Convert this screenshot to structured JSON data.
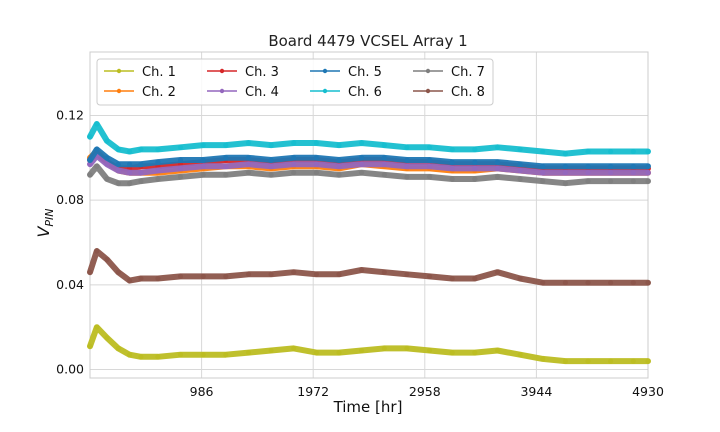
{
  "chart_data": {
    "type": "line",
    "title": "Board 4479 VCSEL Array 1",
    "xlabel": "Time [hr]",
    "ylabel_main": "V",
    "ylabel_sub": "PIN",
    "xlim": [
      0,
      4930
    ],
    "ylim": [
      -0.004,
      0.15
    ],
    "xticks": [
      986,
      1972,
      2958,
      3944,
      4930
    ],
    "xtick_labels": [
      "986",
      "1972",
      "2958",
      "3944",
      "4930"
    ],
    "yticks": [
      0.0,
      0.04,
      0.08,
      0.12
    ],
    "ytick_labels": [
      "0.00",
      "0.04",
      "0.08",
      "0.12"
    ],
    "grid": true,
    "legend_position": "top-left",
    "x": [
      0,
      60,
      150,
      250,
      350,
      450,
      600,
      800,
      1000,
      1200,
      1400,
      1600,
      1800,
      2000,
      2200,
      2400,
      2600,
      2800,
      3000,
      3200,
      3400,
      3600,
      3800,
      4000,
      4200,
      4400,
      4600,
      4800,
      4930
    ],
    "series": [
      {
        "name": "Ch. 1",
        "color": "#bcbd22",
        "values": [
          0.011,
          0.02,
          0.015,
          0.01,
          0.007,
          0.006,
          0.006,
          0.007,
          0.007,
          0.007,
          0.008,
          0.009,
          0.01,
          0.008,
          0.008,
          0.009,
          0.01,
          0.01,
          0.009,
          0.008,
          0.008,
          0.009,
          0.007,
          0.005,
          0.004,
          0.004,
          0.004,
          0.004,
          0.004
        ]
      },
      {
        "name": "Ch. 2",
        "color": "#ff7f0e",
        "values": [
          0.1,
          0.103,
          0.098,
          0.094,
          0.093,
          0.093,
          0.093,
          0.094,
          0.095,
          0.096,
          0.096,
          0.095,
          0.096,
          0.096,
          0.095,
          0.097,
          0.096,
          0.095,
          0.095,
          0.094,
          0.094,
          0.095,
          0.094,
          0.093,
          0.093,
          0.093,
          0.093,
          0.093,
          0.093
        ]
      },
      {
        "name": "Ch. 3",
        "color": "#d62728",
        "values": [
          0.099,
          0.102,
          0.098,
          0.095,
          0.095,
          0.096,
          0.096,
          0.097,
          0.098,
          0.099,
          0.099,
          0.098,
          0.099,
          0.099,
          0.098,
          0.099,
          0.099,
          0.098,
          0.098,
          0.097,
          0.097,
          0.097,
          0.096,
          0.095,
          0.095,
          0.095,
          0.095,
          0.095,
          0.095
        ]
      },
      {
        "name": "Ch. 4",
        "color": "#9467bd",
        "values": [
          0.097,
          0.101,
          0.097,
          0.094,
          0.093,
          0.093,
          0.094,
          0.095,
          0.096,
          0.096,
          0.097,
          0.096,
          0.097,
          0.097,
          0.096,
          0.097,
          0.097,
          0.096,
          0.096,
          0.095,
          0.095,
          0.095,
          0.094,
          0.093,
          0.093,
          0.093,
          0.093,
          0.093,
          0.093
        ]
      },
      {
        "name": "Ch. 5",
        "color": "#1f77b4",
        "values": [
          0.099,
          0.104,
          0.1,
          0.097,
          0.097,
          0.097,
          0.098,
          0.099,
          0.099,
          0.1,
          0.1,
          0.099,
          0.1,
          0.1,
          0.099,
          0.1,
          0.1,
          0.099,
          0.099,
          0.098,
          0.098,
          0.098,
          0.097,
          0.096,
          0.096,
          0.096,
          0.096,
          0.096,
          0.096
        ]
      },
      {
        "name": "Ch. 6",
        "color": "#17becf",
        "values": [
          0.11,
          0.116,
          0.108,
          0.104,
          0.103,
          0.104,
          0.104,
          0.105,
          0.106,
          0.106,
          0.107,
          0.106,
          0.107,
          0.107,
          0.106,
          0.107,
          0.106,
          0.105,
          0.105,
          0.104,
          0.104,
          0.105,
          0.104,
          0.103,
          0.102,
          0.103,
          0.103,
          0.103,
          0.103
        ]
      },
      {
        "name": "Ch. 7",
        "color": "#7f7f7f",
        "values": [
          0.092,
          0.096,
          0.09,
          0.088,
          0.088,
          0.089,
          0.09,
          0.091,
          0.092,
          0.092,
          0.093,
          0.092,
          0.093,
          0.093,
          0.092,
          0.093,
          0.092,
          0.091,
          0.091,
          0.09,
          0.09,
          0.091,
          0.09,
          0.089,
          0.088,
          0.089,
          0.089,
          0.089,
          0.089
        ]
      },
      {
        "name": "Ch. 8",
        "color": "#8c564b",
        "values": [
          0.046,
          0.056,
          0.052,
          0.046,
          0.042,
          0.043,
          0.043,
          0.044,
          0.044,
          0.044,
          0.045,
          0.045,
          0.046,
          0.045,
          0.045,
          0.047,
          0.046,
          0.045,
          0.044,
          0.043,
          0.043,
          0.046,
          0.043,
          0.041,
          0.041,
          0.041,
          0.041,
          0.041,
          0.041
        ]
      }
    ]
  }
}
